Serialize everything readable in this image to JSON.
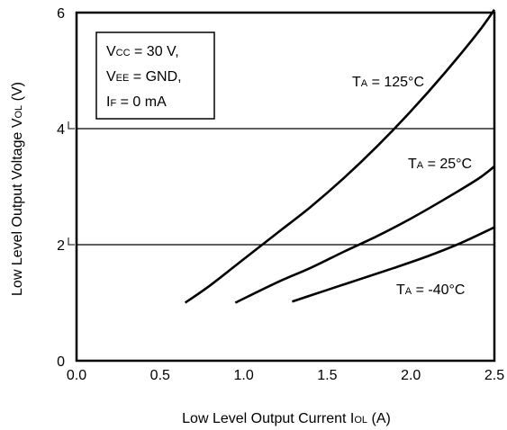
{
  "chart_data": {
    "type": "line",
    "title": "",
    "xlabel": {
      "main": "Low Level Output Current  I",
      "sub": "OL",
      "unit": " (A)"
    },
    "ylabel": {
      "main": "Low Level Output Voltage  V",
      "sub": "OL",
      "unit": " (V)"
    },
    "xlim": [
      0.0,
      2.5
    ],
    "ylim": [
      0,
      6
    ],
    "x_ticks": [
      0.0,
      0.5,
      1.0,
      1.5,
      2.0,
      2.5
    ],
    "x_tick_labels": [
      "0.0",
      "0.5",
      "1.0",
      "1.5",
      "2.0",
      "2.5"
    ],
    "y_ticks": [
      0,
      2,
      4,
      6
    ],
    "y_tick_labels": [
      "0",
      "2",
      "4",
      "6"
    ],
    "gridlines_y": [
      2,
      4
    ],
    "grid": "horizontal at 2 and 4",
    "conditions": [
      {
        "pre": "V",
        "sub": "CC",
        "post": " = 30 V,"
      },
      {
        "pre": "V",
        "sub": "EE",
        "post": " = GND,"
      },
      {
        "pre": "I",
        "sub": "F",
        "post": " = 0 mA"
      }
    ],
    "series": [
      {
        "label": {
          "pre": "T",
          "sub": "A",
          "post": " = 125°C"
        },
        "x": [
          0.65,
          0.8,
          1.0,
          1.2,
          1.4,
          1.6,
          1.8,
          2.0,
          2.2,
          2.4,
          2.5
        ],
        "y": [
          1.0,
          1.3,
          1.75,
          2.2,
          2.65,
          3.15,
          3.7,
          4.3,
          4.95,
          5.65,
          6.05
        ]
      },
      {
        "label": {
          "pre": "T",
          "sub": "A",
          "post": " = 25°C"
        },
        "x": [
          0.95,
          1.2,
          1.4,
          1.6,
          1.8,
          2.0,
          2.2,
          2.4,
          2.5
        ],
        "y": [
          1.0,
          1.35,
          1.6,
          1.88,
          2.15,
          2.45,
          2.78,
          3.13,
          3.35
        ]
      },
      {
        "label": {
          "pre": "T",
          "sub": "A",
          "post": " = -40°C"
        },
        "x": [
          1.29,
          1.5,
          1.7,
          1.9,
          2.1,
          2.3,
          2.5
        ],
        "y": [
          1.02,
          1.22,
          1.41,
          1.6,
          1.8,
          2.03,
          2.3
        ]
      }
    ]
  }
}
